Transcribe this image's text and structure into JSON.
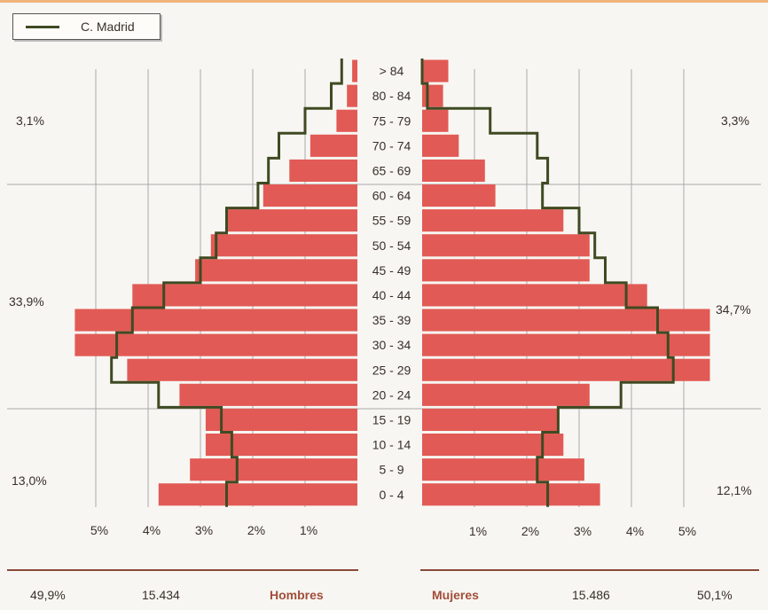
{
  "legend": {
    "label": "C. Madrid"
  },
  "chart_data": {
    "type": "bar",
    "subtype": "population-pyramid",
    "title": "",
    "age_groups": [
      "0 - 4",
      "5 - 9",
      "10 - 14",
      "15 - 19",
      "20 - 24",
      "25 - 29",
      "30 - 34",
      "35 - 39",
      "40 - 44",
      "45 - 49",
      "50 - 54",
      "55 - 59",
      "60 - 64",
      "65 - 69",
      "70 - 74",
      "75 - 79",
      "80 - 84",
      "> 84"
    ],
    "series": [
      {
        "name": "Hombres",
        "side": "left",
        "values": [
          3.8,
          3.2,
          2.9,
          2.9,
          3.4,
          4.4,
          5.4,
          5.4,
          4.3,
          3.1,
          2.8,
          2.5,
          1.8,
          1.3,
          0.9,
          0.4,
          0.2,
          0.1
        ]
      },
      {
        "name": "Mujeres",
        "side": "right",
        "values": [
          3.4,
          3.1,
          2.7,
          2.6,
          3.2,
          5.5,
          5.5,
          5.5,
          4.3,
          3.2,
          3.2,
          2.7,
          1.4,
          1.2,
          0.7,
          0.5,
          0.4,
          0.5
        ]
      }
    ],
    "reference_line": {
      "name": "C. Madrid",
      "left": [
        2.5,
        2.3,
        2.4,
        2.6,
        3.8,
        4.7,
        4.6,
        4.3,
        3.7,
        3.0,
        2.7,
        2.5,
        1.9,
        1.7,
        1.5,
        1.0,
        0.5,
        0.3
      ],
      "right": [
        2.4,
        2.2,
        2.3,
        2.6,
        3.8,
        4.8,
        4.7,
        4.5,
        3.9,
        3.5,
        3.3,
        3.0,
        2.3,
        2.4,
        2.2,
        1.3,
        0.1,
        0.0
      ]
    },
    "x_ticks_left": [
      "5%",
      "4%",
      "3%",
      "2%",
      "1%"
    ],
    "x_ticks_right": [
      "1%",
      "2%",
      "3%",
      "4%",
      "5%"
    ],
    "x_tick_values": [
      5,
      4,
      3,
      2,
      1
    ],
    "grid": true,
    "xlim": [
      0,
      5.5
    ],
    "group_shares": {
      "left": [
        "3,1%",
        "33,9%",
        "13,0%"
      ],
      "right": [
        "3,3%",
        "34,7%",
        "12,1%"
      ]
    },
    "totals": {
      "men": {
        "pct": "49,9%",
        "count": "15.434",
        "label": "Hombres"
      },
      "women": {
        "label": "Mujeres",
        "count": "15.486",
        "pct": "50,1%"
      }
    },
    "colors": {
      "bar": "#e25a55",
      "line": "#3f4a22",
      "grid": "#a9a9a9",
      "rule": "#8a4a3a",
      "total_label": "#a24e3a"
    }
  }
}
